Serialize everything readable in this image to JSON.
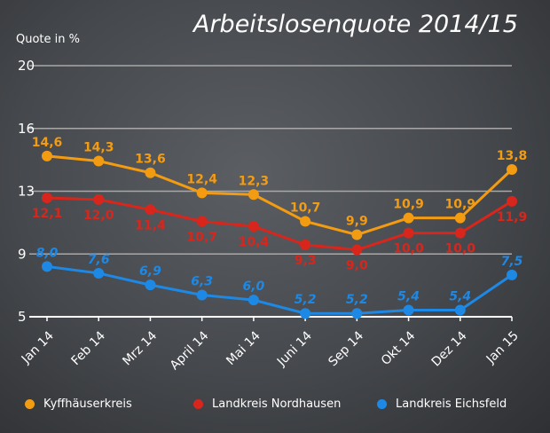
{
  "chart_data": {
    "type": "line",
    "title": "Arbeitslosenquote 2014/15",
    "ylabel": "Quote in %",
    "xlabel": "",
    "categories": [
      "Jan 14",
      "Feb 14",
      "Mrz 14",
      "April 14",
      "Mai 14",
      "Juni 14",
      "Sep 14",
      "Okt 14",
      "Dez 14",
      "Jan 15"
    ],
    "ylim": [
      5,
      20
    ],
    "yticks": [
      "5",
      "9",
      "13",
      "16",
      "20"
    ],
    "grid": true,
    "legend_position": "bottom",
    "series": [
      {
        "name": "Kyffhäuserkreis",
        "color": "#f39c12",
        "values": [
          14.6,
          14.3,
          13.6,
          12.4,
          12.3,
          10.7,
          9.9,
          10.9,
          10.9,
          13.8
        ],
        "labels": [
          "14,6",
          "14,3",
          "13,6",
          "12,4",
          "12,3",
          "10,7",
          "9,9",
          "10,9",
          "10,9",
          "13,8"
        ]
      },
      {
        "name": "Landkreis Nordhausen",
        "color": "#d9261c",
        "values": [
          12.1,
          12.0,
          11.4,
          10.7,
          10.4,
          9.3,
          9.0,
          10.0,
          10.0,
          11.9
        ],
        "labels": [
          "12,1",
          "12,0",
          "11,4",
          "10,7",
          "10,4",
          "9,3",
          "9,0",
          "10,0",
          "10,0",
          "11,9"
        ]
      },
      {
        "name": "Landkreis Eichsfeld",
        "color": "#1e88e5",
        "values": [
          8.0,
          7.6,
          6.9,
          6.3,
          6.0,
          5.2,
          5.2,
          5.4,
          5.4,
          7.5
        ],
        "labels": [
          "8,0",
          "7,6",
          "6,9",
          "6,3",
          "6,0",
          "5,2",
          "5,2",
          "5,4",
          "5,4",
          "7,5"
        ]
      }
    ]
  }
}
